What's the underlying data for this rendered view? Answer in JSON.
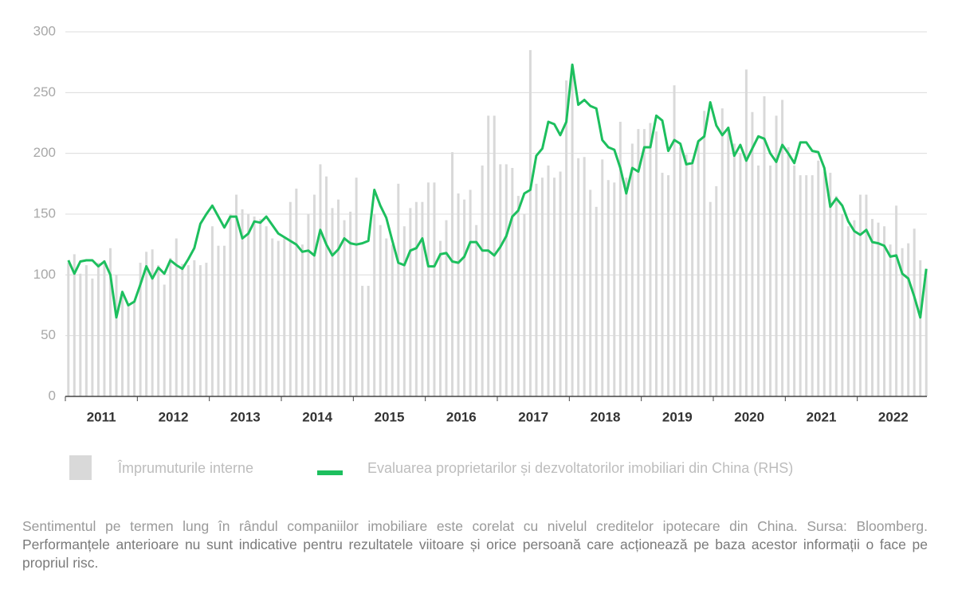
{
  "chart_data": {
    "type": "bar+line",
    "categories": [
      null,
      null,
      null,
      null,
      null,
      null,
      "2011",
      null,
      null,
      null,
      null,
      null,
      null,
      null,
      null,
      null,
      null,
      null,
      "2012",
      null,
      null,
      null,
      null,
      null,
      null,
      null,
      null,
      null,
      null,
      null,
      "2013",
      null,
      null,
      null,
      null,
      null,
      null,
      null,
      null,
      null,
      null,
      null,
      "2014",
      null,
      null,
      null,
      null,
      null,
      null,
      null,
      null,
      null,
      null,
      null,
      "2015",
      null,
      null,
      null,
      null,
      null,
      null,
      null,
      null,
      null,
      null,
      null,
      "2016",
      null,
      null,
      null,
      null,
      null,
      null,
      null,
      null,
      null,
      null,
      null,
      "2017",
      null,
      null,
      null,
      null,
      null,
      null,
      null,
      null,
      null,
      null,
      null,
      "2018",
      null,
      null,
      null,
      null,
      null,
      null,
      null,
      null,
      null,
      null,
      null,
      "2019",
      null,
      null,
      null,
      null,
      null,
      null,
      null,
      null,
      null,
      null,
      null,
      "2020",
      null,
      null,
      null,
      null,
      null,
      null,
      null,
      null,
      null,
      null,
      null,
      "2021",
      null,
      null,
      null,
      null,
      null,
      null,
      null,
      null,
      null,
      null,
      null,
      "2022",
      null,
      null,
      null,
      null,
      null
    ],
    "series": [
      {
        "name": "Împrumuturile interne",
        "kind": "bar",
        "color": "#d9d9d9",
        "values": [
          110,
          117,
          101,
          108,
          97,
          110,
          112,
          122,
          100,
          85,
          75,
          78,
          110,
          119,
          121,
          108,
          92,
          114,
          130,
          109,
          108,
          112,
          108,
          110,
          140,
          124,
          124,
          150,
          166,
          154,
          150,
          148,
          146,
          140,
          130,
          128,
          130,
          160,
          171,
          125,
          150,
          166,
          191,
          181,
          155,
          162,
          145,
          152,
          180,
          91,
          91,
          150,
          141,
          130,
          125,
          175,
          140,
          155,
          160,
          160,
          176,
          176,
          128,
          145,
          201,
          167,
          162,
          170,
          141,
          190,
          231,
          231,
          191,
          191,
          188,
          165,
          150,
          285,
          175,
          180,
          190,
          180,
          185,
          260,
          265,
          196,
          197,
          170,
          156,
          195,
          178,
          176,
          226,
          180,
          208,
          220,
          220,
          225,
          218,
          184,
          182,
          256,
          205,
          199,
          195,
          210,
          235,
          160,
          173,
          237,
          222,
          208,
          200,
          269,
          234,
          190,
          247,
          190,
          231,
          244,
          205,
          190,
          182,
          182,
          182,
          194,
          185,
          184,
          165,
          150,
          140,
          145,
          166,
          166,
          146,
          143,
          140,
          125,
          157,
          122,
          126,
          138,
          112,
          105
        ]
      },
      {
        "name": "Evaluarea proprietarilor și dezvoltatorilor imobiliari din China (RHS)",
        "kind": "line",
        "color": "#1dbf5e",
        "values": [
          112,
          101,
          111,
          112,
          112,
          107,
          111,
          100,
          65,
          86,
          75,
          78,
          92,
          107,
          97,
          106,
          101,
          112,
          108,
          105,
          113,
          122,
          142,
          150,
          157,
          148,
          139,
          148,
          148,
          130,
          134,
          144,
          143,
          148,
          141,
          134,
          131,
          128,
          125,
          119,
          120,
          116,
          137,
          125,
          116,
          121,
          130,
          126,
          125,
          126,
          128,
          170,
          157,
          147,
          128,
          110,
          108,
          120,
          122,
          130,
          107,
          107,
          117,
          118,
          111,
          110,
          115,
          127,
          127,
          120,
          120,
          116,
          123,
          132,
          148,
          153,
          167,
          170,
          198,
          204,
          226,
          224,
          215,
          226,
          273,
          240,
          244,
          239,
          237,
          211,
          205,
          203,
          188,
          167,
          188,
          185,
          205,
          205,
          231,
          227,
          202,
          211,
          208,
          191,
          192,
          210,
          214,
          242,
          223,
          215,
          221,
          198,
          207,
          194,
          204,
          214,
          212,
          200,
          193,
          207,
          200,
          192,
          209,
          209,
          202,
          201,
          188,
          156,
          163,
          157,
          144,
          136,
          133,
          137,
          127,
          126,
          124,
          115,
          116,
          101,
          97,
          82,
          65,
          105
        ]
      }
    ],
    "ylim": [
      0,
      300
    ],
    "yticks": [
      0,
      50,
      100,
      150,
      200,
      250,
      300
    ],
    "grid": true
  },
  "caption": {
    "text": "Sentimentul pe termen lung în rândul companiilor imobiliare este corelat cu nivelul creditelor ipotecare din China. Sursa: Bloomberg.",
    "bold": "Performanțele anterioare nu sunt indicative pentru rezultatele viitoare și orice persoană care acționează pe baza acestor informații o face pe propriul risc."
  }
}
